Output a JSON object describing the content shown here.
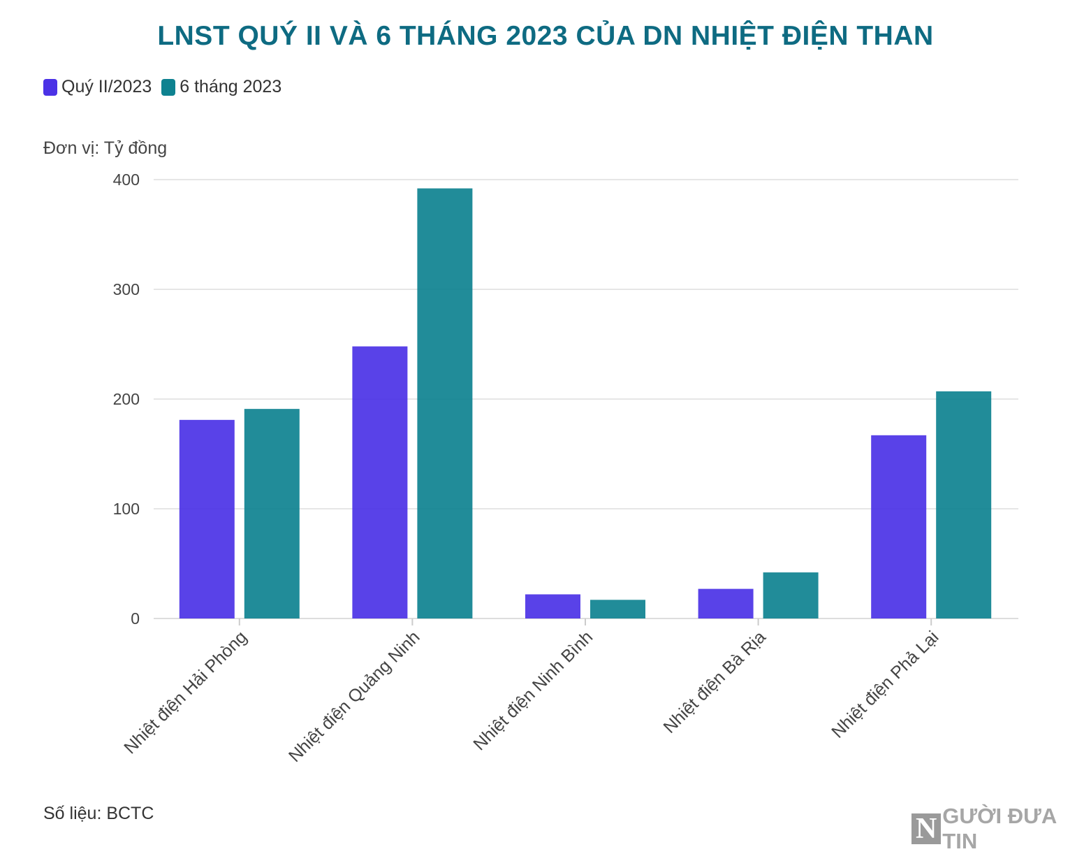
{
  "chart_data": {
    "type": "bar",
    "title": "LNST QUÝ II VÀ 6 THÁNG 2023 CỦA DN NHIỆT ĐIỆN THAN",
    "unit_label": "Đơn vị: Tỷ đồng",
    "categories": [
      "Nhiệt điện Hải Phòng",
      "Nhiệt điện Quảng Ninh",
      "Nhiệt điện Ninh Bình",
      "Nhiệt điện Bà Rịa",
      "Nhiệt điện Phả Lại"
    ],
    "series": [
      {
        "name": "Quý II/2023",
        "color": "#4b32e6",
        "values": [
          181,
          248,
          22,
          27,
          167
        ]
      },
      {
        "name": "6 tháng 2023",
        "color": "#0e8290",
        "values": [
          191,
          392,
          17,
          42,
          207
        ]
      }
    ],
    "yticks": [
      0,
      100,
      200,
      300,
      400
    ],
    "ylim": [
      0,
      400
    ],
    "grid": true,
    "legend_position": "top-left",
    "source": "Số liệu: BCTC"
  },
  "logo": {
    "initial": "N",
    "text": "GƯỜI ĐƯA TIN"
  }
}
